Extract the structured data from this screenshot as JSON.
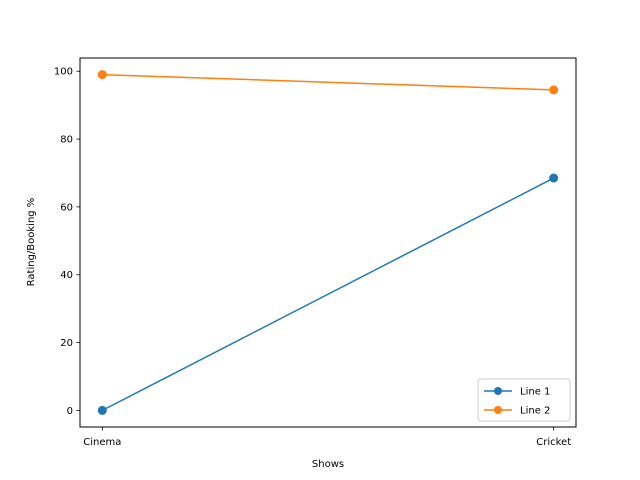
{
  "chart_data": {
    "type": "line",
    "title": "",
    "xlabel": "Shows",
    "ylabel": "Rating/Booking %",
    "categories": [
      "Cinema",
      "Cricket"
    ],
    "ylim": [
      -4.9,
      103.9
    ],
    "yticks": [
      0,
      20,
      40,
      60,
      80,
      100
    ],
    "grid": false,
    "legend_position": "lower right",
    "series": [
      {
        "name": "Line 1",
        "values": [
          0,
          68.5
        ],
        "color": "#1f77b4",
        "marker": "circle"
      },
      {
        "name": "Line 2",
        "values": [
          99,
          94.5
        ],
        "color": "#ff7f0e",
        "marker": "circle"
      }
    ]
  }
}
